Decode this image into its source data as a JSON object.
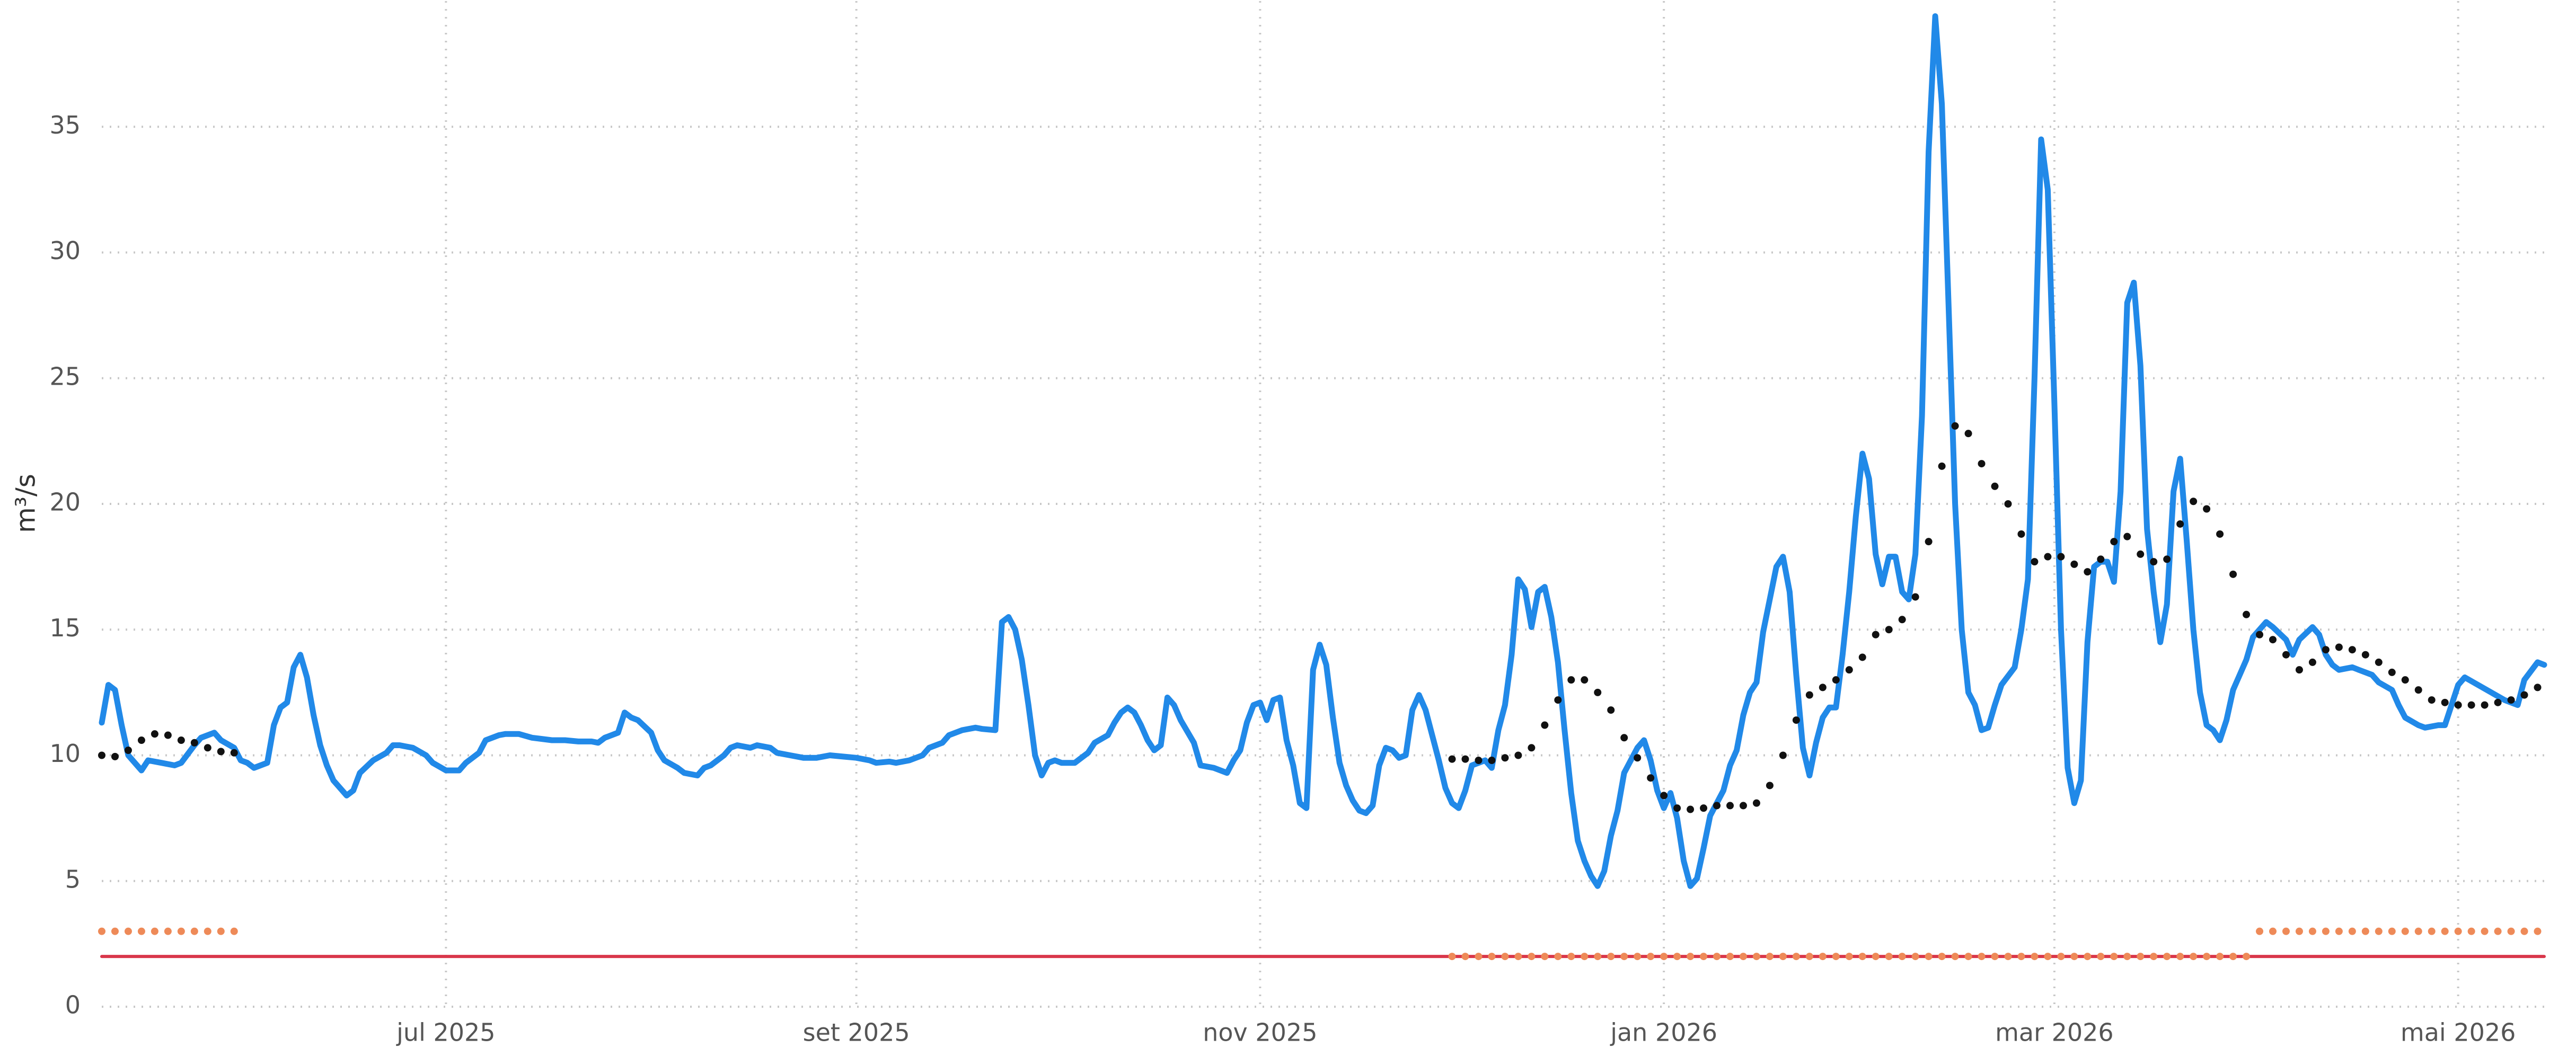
{
  "chart_data": {
    "type": "line",
    "ylabel": "m³/s",
    "xlim": [
      0,
      369
    ],
    "xticks": [
      {
        "value": 52,
        "label": "jul 2025"
      },
      {
        "value": 114,
        "label": "set 2025"
      },
      {
        "value": 175,
        "label": "nov 2025"
      },
      {
        "value": 236,
        "label": "jan 2026"
      },
      {
        "value": 295,
        "label": "mar 2026"
      },
      {
        "value": 356,
        "label": "mai 2026"
      }
    ],
    "ylim": [
      0,
      40
    ],
    "yticks": [
      0,
      5,
      10,
      15,
      20,
      25,
      30,
      35
    ],
    "grid": true,
    "series": [
      {
        "style": "line",
        "color": "#2189e8",
        "x": [
          0,
          1,
          2,
          3,
          4,
          6,
          7,
          9,
          11,
          12,
          14,
          15,
          17,
          18,
          20,
          21,
          22,
          23,
          25,
          26,
          27,
          28,
          29,
          30,
          31,
          32,
          33,
          34,
          35,
          36,
          37,
          38,
          39,
          41,
          43,
          44,
          45,
          47,
          49,
          50,
          52,
          54,
          55,
          57,
          58,
          60,
          61,
          63,
          65,
          68,
          70,
          72,
          74,
          75,
          76,
          78,
          79,
          80,
          81,
          83,
          84,
          85,
          87,
          88,
          90,
          91,
          92,
          94,
          95,
          96,
          98,
          99,
          101,
          102,
          104,
          106,
          108,
          110,
          112,
          114,
          116,
          117,
          119,
          120,
          122,
          124,
          125,
          127,
          128,
          130,
          132,
          133,
          135,
          136,
          137,
          138,
          139,
          140,
          141,
          142,
          143,
          144,
          145,
          147,
          149,
          150,
          152,
          153,
          154,
          155,
          156,
          157,
          158,
          159,
          160,
          161,
          162,
          163,
          165,
          166,
          168,
          170,
          171,
          172,
          173,
          174,
          175,
          176,
          177,
          178,
          179,
          180,
          181,
          182,
          183,
          184,
          185,
          186,
          187,
          188,
          189,
          190,
          191,
          192,
          193,
          194,
          195,
          196,
          197,
          198,
          199,
          200,
          201,
          202,
          203,
          204,
          205,
          206,
          207,
          208,
          209,
          210,
          211,
          212,
          213,
          214,
          215,
          216,
          217,
          218,
          219,
          220,
          221,
          222,
          223,
          224,
          225,
          226,
          227,
          228,
          229,
          230,
          232,
          233,
          234,
          235,
          236,
          237,
          238,
          239,
          240,
          241,
          242,
          243,
          245,
          246,
          247,
          248,
          249,
          250,
          251,
          252,
          253,
          254,
          255,
          256,
          257,
          258,
          259,
          260,
          261,
          262,
          263,
          264,
          265,
          266,
          267,
          268,
          269,
          270,
          271,
          272,
          273,
          274,
          275,
          276,
          277,
          278,
          279,
          280,
          281,
          282,
          283,
          284,
          285,
          286,
          287,
          289,
          290,
          291,
          292,
          293,
          294,
          295,
          296,
          297,
          298,
          299,
          300,
          301,
          302,
          303,
          304,
          305,
          306,
          307,
          308,
          309,
          310,
          311,
          312,
          313,
          314,
          315,
          316,
          317,
          318,
          319,
          320,
          321,
          322,
          324,
          325,
          327,
          328,
          330,
          331,
          332,
          334,
          335,
          336,
          337,
          338,
          340,
          341,
          343,
          344,
          346,
          347,
          348,
          350,
          351,
          353,
          354,
          355,
          356,
          357,
          359,
          361,
          363,
          365,
          366,
          368,
          369
        ],
        "values": [
          11.3,
          12.8,
          12.6,
          11.2,
          10.0,
          9.4,
          9.8,
          9.7,
          9.6,
          9.7,
          10.4,
          10.7,
          10.9,
          10.6,
          10.3,
          9.8,
          9.7,
          9.5,
          9.7,
          11.2,
          11.9,
          12.1,
          13.5,
          14.0,
          13.1,
          11.6,
          10.4,
          9.6,
          9.0,
          8.7,
          8.4,
          8.6,
          9.3,
          9.8,
          10.1,
          10.4,
          10.4,
          10.3,
          10.0,
          9.7,
          9.4,
          9.4,
          9.7,
          10.1,
          10.6,
          10.8,
          10.85,
          10.85,
          10.7,
          10.6,
          10.6,
          10.55,
          10.55,
          10.5,
          10.7,
          10.9,
          11.7,
          11.5,
          11.4,
          10.9,
          10.2,
          9.8,
          9.5,
          9.3,
          9.2,
          9.5,
          9.6,
          10.0,
          10.3,
          10.4,
          10.3,
          10.4,
          10.3,
          10.1,
          10.0,
          9.9,
          9.9,
          10.0,
          9.95,
          9.9,
          9.8,
          9.7,
          9.75,
          9.7,
          9.8,
          10.0,
          10.3,
          10.5,
          10.8,
          11.0,
          11.1,
          11.05,
          11.0,
          15.3,
          15.5,
          15.0,
          13.8,
          12.0,
          10.0,
          9.2,
          9.7,
          9.8,
          9.7,
          9.7,
          10.1,
          10.5,
          10.8,
          11.3,
          11.7,
          11.9,
          11.7,
          11.2,
          10.6,
          10.2,
          10.4,
          12.3,
          12.0,
          11.4,
          10.5,
          9.6,
          9.5,
          9.3,
          9.8,
          10.2,
          11.3,
          12.0,
          12.1,
          11.4,
          12.2,
          12.3,
          10.6,
          9.6,
          8.1,
          7.9,
          13.4,
          14.4,
          13.6,
          11.5,
          9.7,
          8.8,
          8.2,
          7.8,
          7.7,
          8.0,
          9.6,
          10.3,
          10.2,
          9.9,
          10.0,
          11.8,
          12.4,
          11.8,
          10.8,
          9.8,
          8.7,
          8.1,
          7.9,
          8.6,
          9.6,
          9.7,
          9.8,
          9.5,
          11.0,
          12.0,
          14.0,
          17.0,
          16.6,
          15.1,
          16.5,
          16.7,
          15.5,
          13.7,
          11.0,
          8.5,
          6.6,
          5.8,
          5.2,
          4.8,
          5.4,
          6.8,
          7.8,
          9.3,
          10.3,
          10.6,
          9.8,
          8.6,
          7.9,
          8.5,
          7.5,
          5.8,
          4.8,
          5.1,
          6.3,
          7.6,
          8.6,
          9.6,
          10.2,
          11.6,
          12.5,
          12.9,
          14.9,
          16.2,
          17.5,
          17.9,
          16.5,
          13.2,
          10.3,
          9.2,
          10.5,
          11.5,
          11.9,
          11.9,
          14.0,
          16.5,
          19.5,
          22.0,
          21.0,
          18.0,
          16.8,
          17.9,
          17.9,
          16.5,
          16.2,
          18.0,
          23.5,
          34.0,
          39.4,
          35.9,
          28.0,
          20.0,
          15.0,
          12.5,
          12.0,
          11.0,
          11.1,
          12.0,
          12.8,
          13.5,
          15.0,
          17.0,
          25.0,
          34.5,
          32.5,
          24.0,
          15.0,
          9.5,
          8.1,
          9.0,
          14.5,
          17.5,
          17.7,
          17.7,
          16.9,
          20.5,
          28.0,
          28.8,
          25.5,
          19.0,
          16.5,
          14.5,
          16.0,
          20.5,
          21.8,
          18.5,
          15.0,
          12.5,
          11.2,
          11.0,
          10.6,
          11.4,
          12.6,
          13.8,
          14.7,
          15.3,
          15.1,
          14.6,
          14.0,
          14.6,
          15.1,
          14.8,
          14.0,
          13.6,
          13.4,
          13.5,
          13.4,
          13.2,
          12.9,
          12.6,
          12.0,
          11.5,
          11.2,
          11.1,
          11.2,
          11.2,
          12.0,
          12.8,
          13.1,
          12.8,
          12.5,
          12.2,
          12.0,
          13.0,
          13.7,
          13.6
        ]
      },
      {
        "style": "dots",
        "color": "#111111",
        "x": [
          0,
          2,
          4,
          6,
          8,
          10,
          12,
          14,
          16,
          18,
          20,
          204,
          206,
          208,
          210,
          212,
          214,
          216,
          218,
          220,
          222,
          224,
          226,
          228,
          230,
          232,
          234,
          236,
          238,
          240,
          242,
          244,
          246,
          248,
          250,
          252,
          254,
          256,
          258,
          260,
          262,
          264,
          266,
          268,
          270,
          272,
          274,
          276,
          278,
          280,
          282,
          284,
          286,
          288,
          290,
          292,
          294,
          296,
          298,
          300,
          302,
          304,
          306,
          308,
          310,
          312,
          314,
          316,
          318,
          320,
          322,
          324,
          326,
          328,
          330,
          332,
          334,
          336,
          338,
          340,
          342,
          344,
          346,
          348,
          350,
          352,
          354,
          356,
          358,
          360,
          362,
          364,
          366,
          368
        ],
        "values": [
          10.0,
          9.95,
          10.2,
          10.6,
          10.85,
          10.8,
          10.6,
          10.5,
          10.3,
          10.15,
          10.1,
          9.85,
          9.85,
          9.8,
          9.8,
          9.9,
          10.0,
          10.3,
          11.2,
          12.2,
          13.0,
          13.0,
          12.5,
          11.8,
          10.7,
          9.9,
          9.1,
          8.4,
          7.9,
          7.85,
          7.9,
          8.0,
          8.0,
          8.0,
          8.1,
          8.8,
          10.0,
          11.4,
          12.4,
          12.7,
          13.0,
          13.4,
          13.9,
          14.8,
          15.0,
          15.4,
          16.3,
          18.5,
          21.5,
          23.1,
          22.8,
          21.6,
          20.7,
          20.0,
          18.8,
          17.7,
          17.9,
          17.9,
          17.6,
          17.3,
          17.8,
          18.5,
          18.7,
          18.0,
          17.7,
          17.8,
          19.2,
          20.1,
          19.8,
          18.8,
          17.2,
          15.6,
          14.8,
          14.6,
          14.0,
          13.4,
          13.7,
          14.2,
          14.3,
          14.2,
          14.0,
          13.7,
          13.3,
          13.0,
          12.6,
          12.2,
          12.1,
          12.0,
          12.0,
          12.0,
          12.1,
          12.2,
          12.4,
          12.7
        ]
      },
      {
        "style": "dots",
        "color": "#ee8a58",
        "x": [
          0,
          2,
          4,
          6,
          8,
          10,
          12,
          14,
          16,
          18,
          20,
          204,
          206,
          208,
          210,
          212,
          214,
          216,
          218,
          220,
          222,
          224,
          226,
          228,
          230,
          232,
          234,
          236,
          238,
          240,
          242,
          244,
          246,
          248,
          250,
          252,
          254,
          256,
          258,
          260,
          262,
          264,
          266,
          268,
          270,
          272,
          274,
          276,
          278,
          280,
          282,
          284,
          286,
          288,
          290,
          292,
          294,
          296,
          298,
          300,
          302,
          304,
          306,
          308,
          310,
          312,
          314,
          316,
          318,
          320,
          322,
          324,
          326,
          328,
          330,
          332,
          334,
          336,
          338,
          340,
          342,
          344,
          346,
          348,
          350,
          352,
          354,
          356,
          358,
          360,
          362,
          364,
          366,
          368
        ],
        "values": [
          3,
          3,
          3,
          3,
          3,
          3,
          3,
          3,
          3,
          3,
          3,
          2,
          2,
          2,
          2,
          2,
          2,
          2,
          2,
          2,
          2,
          2,
          2,
          2,
          2,
          2,
          2,
          2,
          2,
          2,
          2,
          2,
          2,
          2,
          2,
          2,
          2,
          2,
          2,
          2,
          2,
          2,
          2,
          2,
          2,
          2,
          2,
          2,
          2,
          2,
          2,
          2,
          2,
          2,
          2,
          2,
          2,
          2,
          2,
          2,
          2,
          2,
          2,
          2,
          2,
          2,
          2,
          2,
          2,
          2,
          2,
          2,
          3,
          3,
          3,
          3,
          3,
          3,
          3,
          3,
          3,
          3,
          3,
          3,
          3,
          3,
          3,
          3,
          3,
          3,
          3,
          3,
          3,
          3
        ]
      },
      {
        "style": "line",
        "color": "#d9364a",
        "x": [
          0,
          369
        ],
        "values": [
          2,
          2
        ]
      }
    ]
  }
}
